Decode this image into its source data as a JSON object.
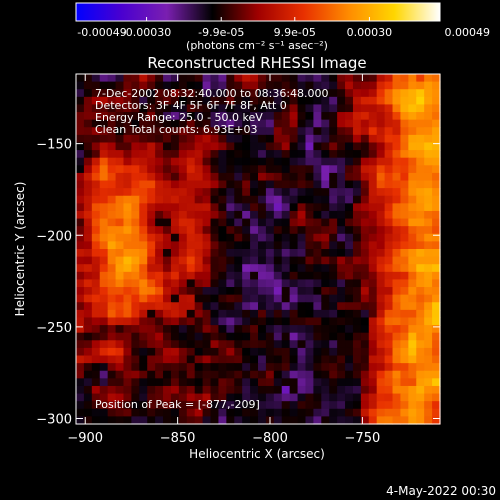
{
  "chart_data": {
    "type": "heatmap",
    "title": "Reconstructed RHESSI Image",
    "xlabel": "Heliocentric X (arcsec)",
    "ylabel": "Heliocentric Y (arcsec)",
    "xlim": [
      -905,
      -708
    ],
    "ylim": [
      -303,
      -112
    ],
    "xticks": [
      -900,
      -850,
      -800,
      -750
    ],
    "yticks": [
      -300,
      -250,
      -200,
      -150
    ],
    "annotations": [
      "7-Dec-2002 08:32:40.000 to 08:36:48.000",
      "Detectors: 3F 4F 5F 6F 7F 8F, Att 0",
      "Energy Range: 25.0 - 50.0 keV",
      "Clean     Total counts: 6.93E+03"
    ],
    "peak_label": "Position of Peak = [-877,-209]",
    "peak": [
      -877,
      -209
    ],
    "colorbar": {
      "range": [
        -0.00049,
        0.00049
      ],
      "tick_labels": [
        "-0.00049",
        "-0.00030",
        "-9.9e-05",
        "9.9e-05",
        "0.00030",
        "0.00049"
      ],
      "tick_values": [
        -0.00049,
        -0.0003,
        -9.9e-05,
        9.9e-05,
        0.0003,
        0.00049
      ],
      "units": "(photons cm⁻² s⁻¹ asec⁻²)",
      "stops": [
        "#0000ff",
        "#4a00d0",
        "#7a1fb0",
        "#000000",
        "#a00000",
        "#e83000",
        "#ff8c00",
        "#ffd600",
        "#ffffff"
      ]
    },
    "grid": false
  },
  "footer": {
    "date": "4-May-2022 00:30"
  }
}
